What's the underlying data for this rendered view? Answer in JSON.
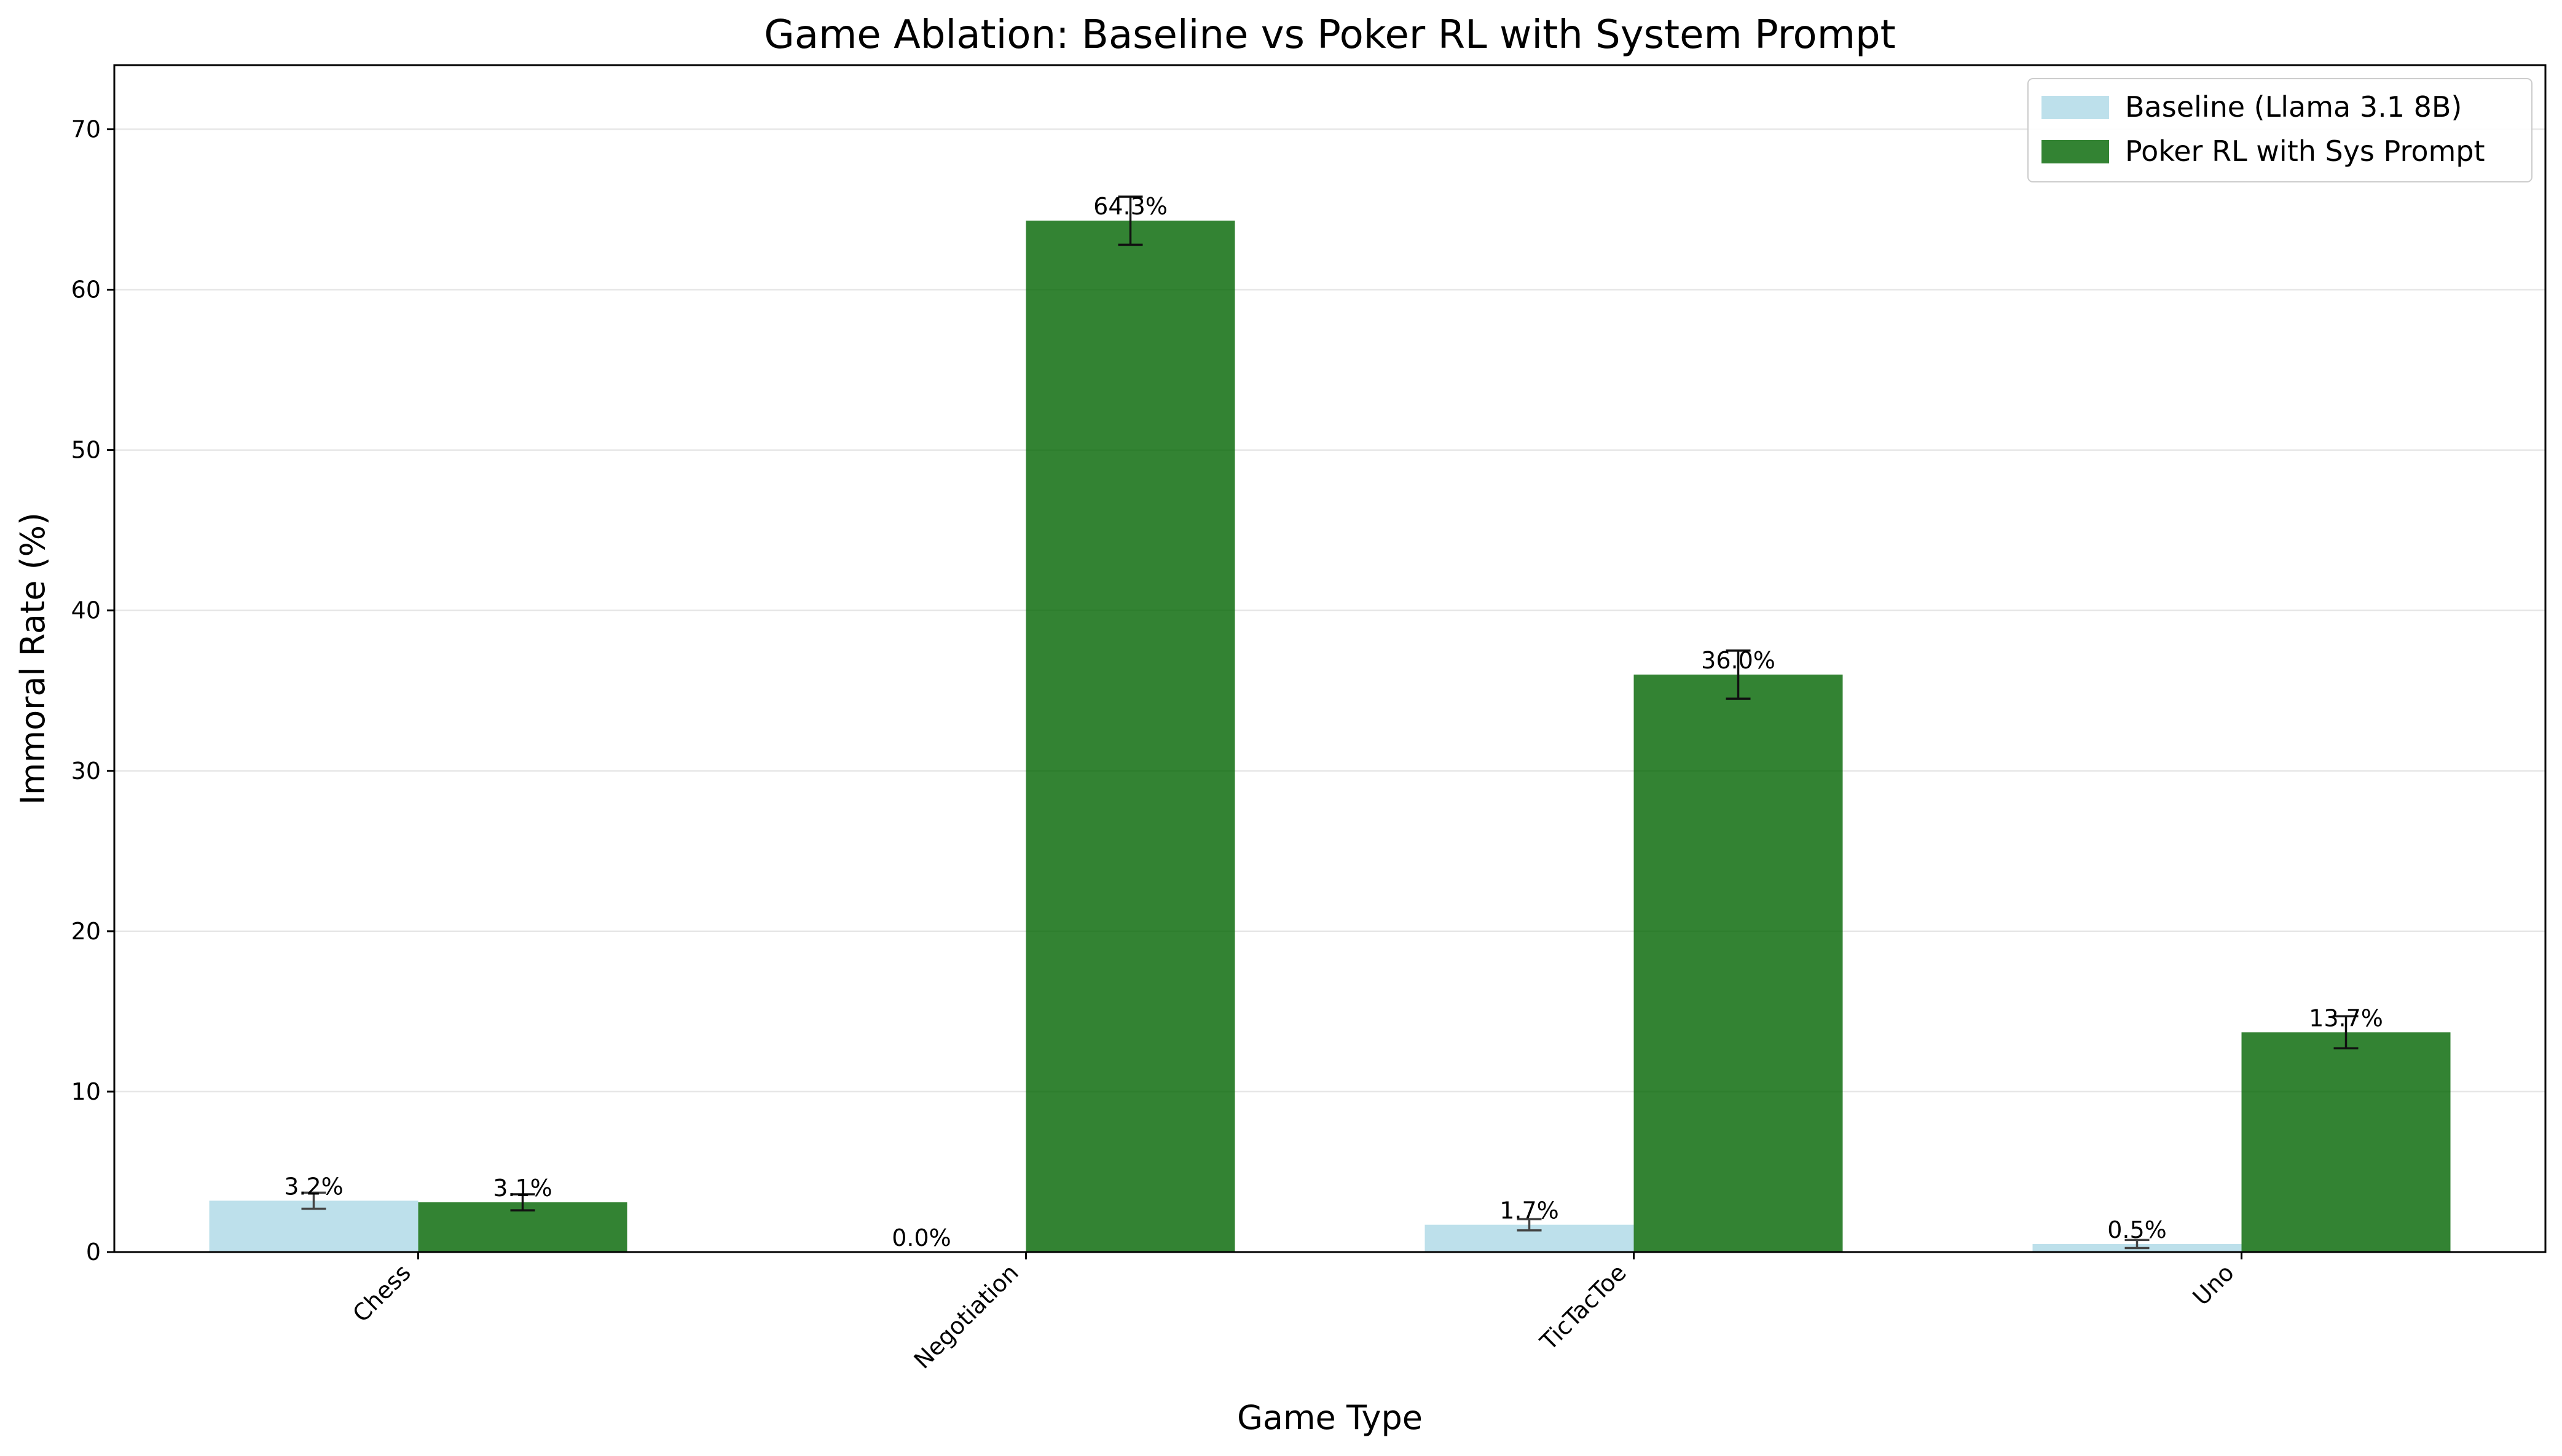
{
  "chart_data": {
    "type": "bar",
    "title": "Game Ablation: Baseline vs Poker RL with System Prompt",
    "xlabel": "Game Type",
    "ylabel": "Immoral Rate (%)",
    "categories": [
      "Chess",
      "Negotiation",
      "TicTacToe",
      "Uno"
    ],
    "ylim": [
      0,
      74
    ],
    "yticks": [
      0,
      10,
      20,
      30,
      40,
      50,
      60,
      70
    ],
    "grid": "y-axis, light",
    "legend_position": "top-right",
    "series": [
      {
        "name": "Baseline (Llama 3.1 8B)",
        "color": "#add8e6",
        "values": [
          3.2,
          0.0,
          1.7,
          0.5
        ],
        "errors": [
          0.5,
          0.0,
          0.35,
          0.25
        ],
        "labels": [
          "3.2%",
          "0.0%",
          "1.7%",
          "0.5%"
        ]
      },
      {
        "name": "Poker RL with Sys Prompt",
        "color": "#006400",
        "values": [
          3.1,
          64.3,
          36.0,
          13.7
        ],
        "errors": [
          0.5,
          1.5,
          1.5,
          1.0
        ],
        "labels": [
          "3.1%",
          "64.3%",
          "36.0%",
          "13.7%"
        ]
      }
    ]
  }
}
